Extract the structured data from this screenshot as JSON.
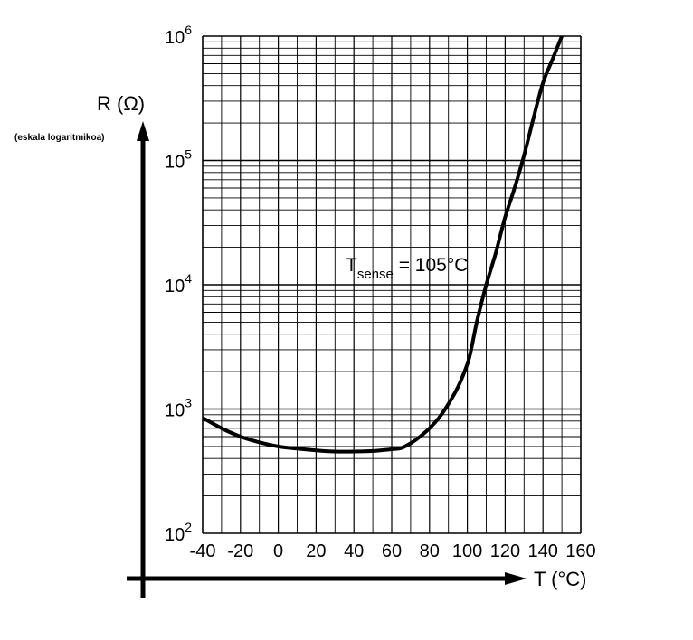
{
  "chart_data": {
    "type": "line",
    "title": "",
    "xlabel": "T (°C)",
    "ylabel": "R (Ω)",
    "ylabel_note": "(eskala logaritmikoa)",
    "xlim": [
      -40,
      160
    ],
    "ylim": [
      100,
      1000000
    ],
    "y_scale": "log",
    "grid": true,
    "x_ticks": [
      "-40",
      "-20",
      "0",
      "20",
      "40",
      "60",
      "80",
      "100",
      "120",
      "140",
      "160"
    ],
    "y_ticks": [
      {
        "base": "10",
        "exp": "2"
      },
      {
        "base": "10",
        "exp": "3"
      },
      {
        "base": "10",
        "exp": "4"
      },
      {
        "base": "10",
        "exp": "5"
      },
      {
        "base": "10",
        "exp": "6"
      }
    ],
    "annotation": {
      "main": "T",
      "sub": "sense",
      "rest": " = 105°C"
    },
    "series": [
      {
        "x": [
          -40,
          -30,
          -20,
          -10,
          0,
          10,
          20,
          30,
          40,
          50,
          60,
          65,
          70,
          75,
          80,
          85,
          90,
          95,
          100,
          102,
          105,
          110,
          115,
          120,
          125,
          130,
          135,
          140,
          145,
          150
        ],
        "y": [
          850,
          700,
          600,
          540,
          500,
          480,
          465,
          455,
          455,
          460,
          475,
          485,
          530,
          600,
          700,
          850,
          1100,
          1500,
          2300,
          3000,
          5000,
          10000,
          18000,
          35000,
          60000,
          110000,
          220000,
          420000,
          650000,
          1000000
        ]
      }
    ]
  }
}
